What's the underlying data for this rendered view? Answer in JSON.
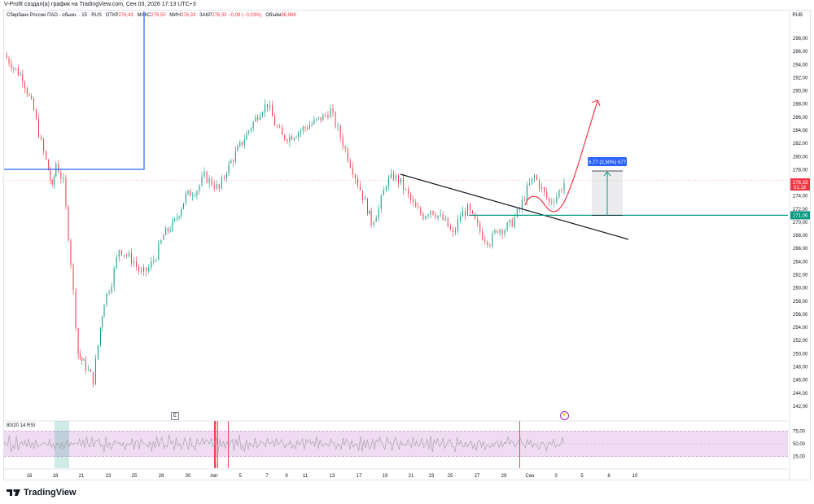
{
  "caption": "V-Profit создал(а) график на TradingView.com, Сен 03, 2026 17:13 UTC+3",
  "legend": {
    "symbol": "Сбербанк России ПАО - обыкн. · 15 · RUS",
    "open_label": "ОТКР",
    "open": "276,43",
    "high_label": "МАКС",
    "high": "276,50",
    "low_label": "МИН",
    "low": "276,33",
    "close_label": "ЗАКР",
    "close": "276,33",
    "change": "−0,08 (−0,03%)",
    "volume_label": "Объём",
    "volume": "96,96K"
  },
  "currency": "RUB",
  "price_badges": {
    "last_price": "276,33",
    "countdown": "01:18",
    "level": "271,06"
  },
  "measure_label": "6,77 (2,50%) 677",
  "rsi": {
    "label": "80/20 14 RSI",
    "ticks": [
      "75,00",
      "50,00",
      "25,00"
    ]
  },
  "e_badge": "E",
  "flash_icon": "lightning-icon",
  "logo_text": "TradingView",
  "colors": {
    "up": "#089981",
    "down": "#f23645",
    "accent": "#2962ff",
    "level_line": "#089981",
    "rsi_band": "#e1bee7",
    "box_line": "#2962ff"
  },
  "chart_data": {
    "type": "candlestick",
    "title": "Сбербанк России ПАО - обыкн. · 15 · RUS",
    "ylabel": "RUB",
    "ylim": [
      240,
      300
    ],
    "y_ticks": [
      "298,00",
      "296,00",
      "294,00",
      "292,00",
      "290,00",
      "288,00",
      "286,00",
      "284,00",
      "282,00",
      "280,00",
      "278,00",
      "276,00",
      "274,00",
      "272,00",
      "270,00",
      "268,00",
      "266,00",
      "264,00",
      "262,00",
      "260,00",
      "258,00",
      "256,00",
      "254,00",
      "252,00",
      "250,00",
      "248,00",
      "246,00",
      "244,00",
      "242,00"
    ],
    "x_ticks": [
      "16",
      "18",
      "21",
      "23",
      "25",
      "28",
      "30",
      "Авг",
      "5",
      "7",
      "9",
      "11",
      "13",
      "17",
      "19",
      "21",
      "23",
      "25",
      "27",
      "29",
      "Сен",
      "3",
      "5",
      "8",
      "10"
    ],
    "price_path": [
      [
        0,
        295.5
      ],
      [
        2,
        294
      ],
      [
        5,
        292
      ],
      [
        8,
        287
      ],
      [
        10,
        282
      ],
      [
        12,
        278
      ],
      [
        13,
        275
      ],
      [
        14,
        279
      ],
      [
        16,
        276
      ],
      [
        18,
        264
      ],
      [
        20,
        250
      ],
      [
        21,
        249
      ],
      [
        22,
        248
      ],
      [
        24,
        246
      ],
      [
        26,
        254
      ],
      [
        27,
        258
      ],
      [
        29,
        261
      ],
      [
        31,
        266
      ],
      [
        33,
        265
      ],
      [
        35,
        264
      ],
      [
        37,
        262
      ],
      [
        39,
        263
      ],
      [
        41,
        265
      ],
      [
        43,
        268
      ],
      [
        46,
        270
      ],
      [
        49,
        274
      ],
      [
        52,
        275
      ],
      [
        54,
        277
      ],
      [
        56,
        276
      ],
      [
        58,
        275
      ],
      [
        60,
        278
      ],
      [
        63,
        281
      ],
      [
        66,
        284
      ],
      [
        69,
        287
      ],
      [
        71,
        288
      ],
      [
        73,
        285
      ],
      [
        75,
        283
      ],
      [
        77,
        283
      ],
      [
        80,
        284
      ],
      [
        83,
        285
      ],
      [
        86,
        286
      ],
      [
        88,
        287
      ],
      [
        90,
        284
      ],
      [
        92,
        281
      ],
      [
        94,
        278
      ],
      [
        96,
        275
      ],
      [
        98,
        272
      ],
      [
        99,
        270
      ],
      [
        101,
        272
      ],
      [
        103,
        276
      ],
      [
        105,
        277
      ],
      [
        107,
        276
      ],
      [
        109,
        274
      ],
      [
        111,
        272
      ],
      [
        113,
        271
      ],
      [
        115,
        272
      ],
      [
        117,
        271
      ],
      [
        119,
        270
      ],
      [
        121,
        268
      ],
      [
        123,
        271
      ],
      [
        125,
        272
      ],
      [
        127,
        270
      ],
      [
        129,
        268
      ],
      [
        131,
        267
      ],
      [
        133,
        269
      ],
      [
        135,
        269
      ],
      [
        137,
        270
      ],
      [
        139,
        272
      ],
      [
        141,
        275
      ],
      [
        143,
        277
      ],
      [
        145,
        275
      ],
      [
        147,
        273
      ],
      [
        149,
        274
      ],
      [
        151,
        276
      ]
    ],
    "series": [
      {
        "name": "80/20 14 RSI",
        "values": [
          48,
          55,
          42,
          60,
          38,
          52,
          47,
          61,
          44,
          50,
          57,
          41,
          53,
          49,
          62,
          45,
          51,
          39,
          58,
          46,
          54,
          43,
          50,
          56,
          48,
          44,
          59,
          47,
          52,
          41,
          55,
          49,
          46,
          60,
          43,
          53,
          50,
          45,
          57,
          48
        ]
      }
    ],
    "annotations": [
      "6,77 (2,50%) 677"
    ]
  }
}
